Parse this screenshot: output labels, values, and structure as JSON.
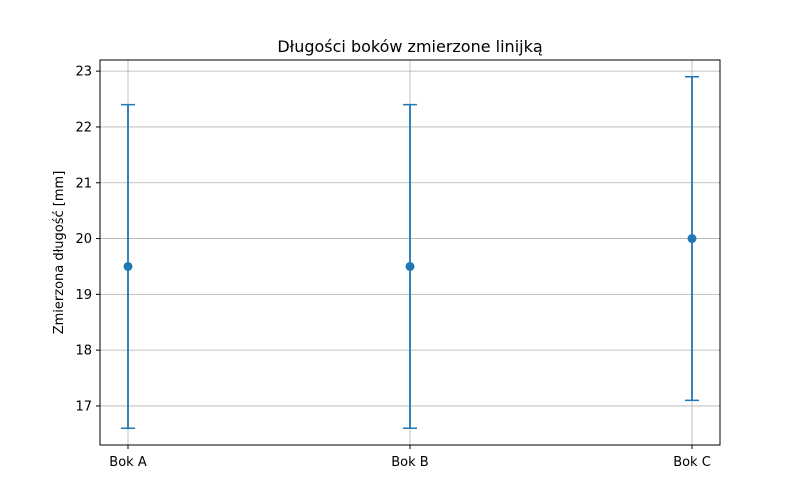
{
  "chart_data": {
    "type": "scatter",
    "title": "Długości boków zmierzone linijką",
    "xlabel": "",
    "ylabel": "Zmierzona długość [mm]",
    "categories": [
      "Bok A",
      "Bok B",
      "Bok C"
    ],
    "series": [
      {
        "values": [
          19.5,
          19.5,
          20.0
        ],
        "errors": [
          2.9,
          2.9,
          2.9
        ]
      }
    ],
    "ylim": [
      16.3,
      23.2
    ],
    "yticks": [
      17,
      18,
      19,
      20,
      21,
      22,
      23
    ],
    "grid": true,
    "color": "#1f77b4"
  }
}
